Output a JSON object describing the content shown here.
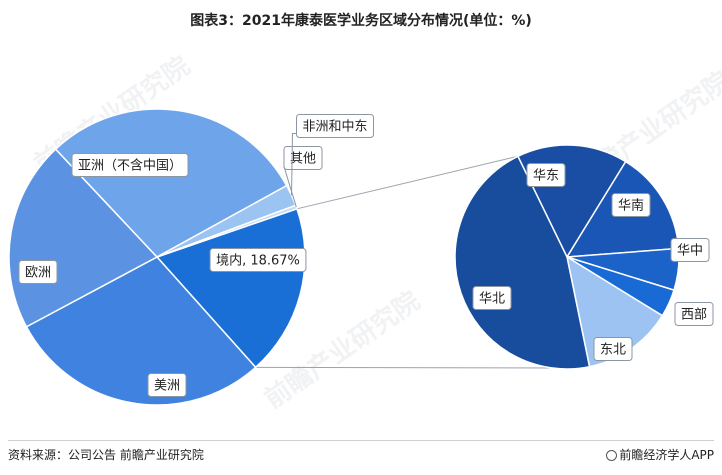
{
  "header": {
    "title": "图表3：2021年康泰医学业务区域分布情况(单位：%)"
  },
  "footer": {
    "source": "资料来源：公司公告 前瞻产业研究院",
    "brand": "前瞻经济学人APP"
  },
  "watermark": "前瞻产业研究院",
  "chart_data": [
    {
      "type": "pie",
      "title": "",
      "slices": [
        {
          "label": "境内, 18.67%",
          "value": 18.67,
          "color": "#1a6fd6"
        },
        {
          "label": "美洲",
          "value": 28.8,
          "color": "#3f82df"
        },
        {
          "label": "欧洲",
          "value": 20.8,
          "color": "#5b93e2"
        },
        {
          "label": "亚洲（不含中国）",
          "value": 29.0,
          "color": "#6ea5ea"
        },
        {
          "label": "非洲和中东",
          "value": 2.33,
          "color": "#9cc4f2"
        },
        {
          "label": "其他",
          "value": 0.4,
          "color": "#c5dcf7"
        }
      ]
    },
    {
      "type": "pie",
      "title": "",
      "slices": [
        {
          "label": "华东",
          "value": 16.0,
          "color": "#1a4ea5"
        },
        {
          "label": "华南",
          "value": 15.0,
          "color": "#1a56b5"
        },
        {
          "label": "华中",
          "value": 6.0,
          "color": "#1b62c9"
        },
        {
          "label": "西部",
          "value": 4.0,
          "color": "#1a6ad6"
        },
        {
          "label": "东北",
          "value": 13.0,
          "color": "#9dc3f2"
        },
        {
          "label": "华北",
          "value": 46.0,
          "color": "#174d9c"
        }
      ]
    }
  ]
}
